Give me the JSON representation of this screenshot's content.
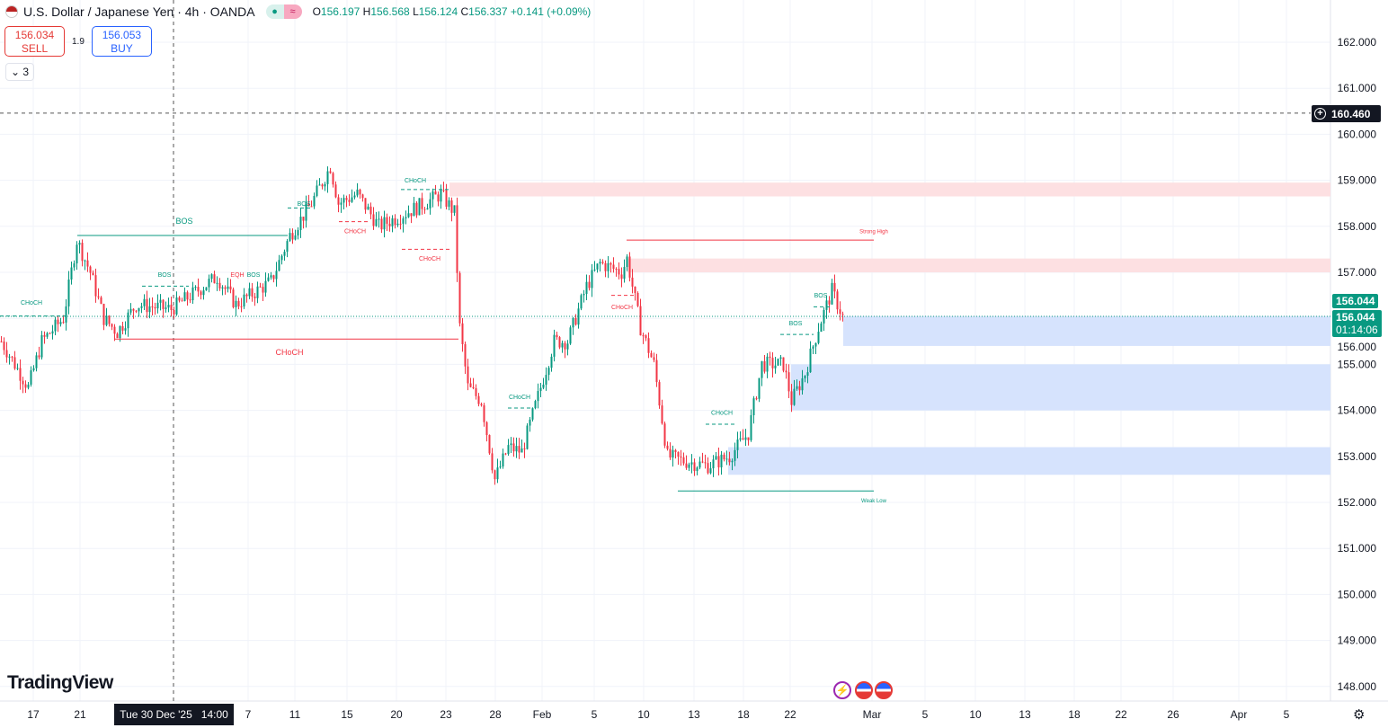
{
  "header": {
    "symbol": "U.S. Dollar / Japanese Yen · 4h · OANDA",
    "open_label": "O",
    "open": "156.197",
    "high_label": "H",
    "high": "156.568",
    "low_label": "L",
    "low": "156.124",
    "close_label": "C",
    "close": "156.337",
    "change": "+0.141 (+0.09%)",
    "market_status_icon": "dot",
    "indicator_icon": "≈"
  },
  "trade": {
    "sell_price": "156.034",
    "sell_label": "SELL",
    "spread": "1.9",
    "buy_price": "156.053",
    "buy_label": "BUY"
  },
  "collapse": {
    "icon": "⌄",
    "count": "3"
  },
  "logo": "TradingView",
  "price_axis": {
    "ticks": [
      "162.000",
      "161.000",
      "160.000",
      "159.000",
      "158.000",
      "157.000",
      "156.000",
      "155.000",
      "154.000",
      "153.000",
      "152.000",
      "151.000",
      "150.000",
      "149.000",
      "148.000"
    ],
    "current_price": "156.044",
    "bid_price": "156.044",
    "countdown": "01:14:06",
    "crosshair_price": "160.460"
  },
  "time_axis": {
    "ticks": [
      "17",
      "21",
      "7",
      "11",
      "15",
      "20",
      "23",
      "28",
      "Feb",
      "5",
      "10",
      "13",
      "18",
      "22",
      "Mar",
      "5",
      "10",
      "13",
      "18",
      "22",
      "26",
      "Apr",
      "5"
    ],
    "cursor_date": "Tue 30 Dec '25",
    "cursor_time": "14:00"
  },
  "colors": {
    "up": "#089981",
    "down": "#f23645",
    "supply": "#fde0e2",
    "demand": "#d6e3fd"
  },
  "chart_data": {
    "type": "candlestick",
    "ylim": [
      147.6,
      162.6
    ],
    "close_path": [
      [
        0,
        155.5
      ],
      [
        10,
        154.5
      ],
      [
        15,
        155.5
      ],
      [
        23,
        156
      ],
      [
        28,
        157.7
      ],
      [
        33,
        157
      ],
      [
        38,
        156
      ],
      [
        43,
        155.7
      ],
      [
        50,
        156.3
      ],
      [
        63,
        156.2
      ],
      [
        80,
        156.9
      ],
      [
        87,
        156.3
      ],
      [
        100,
        156.8
      ],
      [
        107,
        157.8
      ],
      [
        115,
        158.5
      ],
      [
        122,
        159.3
      ],
      [
        125,
        158.5
      ],
      [
        132,
        158.7
      ],
      [
        140,
        158
      ],
      [
        147,
        158.2
      ],
      [
        157,
        158.5
      ],
      [
        163,
        158.7
      ],
      [
        168,
        158.3
      ],
      [
        170,
        155.8
      ],
      [
        173,
        154.5
      ],
      [
        178,
        154.2
      ],
      [
        183,
        152.5
      ],
      [
        188,
        153.2
      ],
      [
        193,
        153.1
      ],
      [
        200,
        154.5
      ],
      [
        205,
        155.5
      ],
      [
        210,
        155.5
      ],
      [
        217,
        156.7
      ],
      [
        222,
        157.2
      ],
      [
        230,
        157
      ],
      [
        232,
        157.3
      ],
      [
        237,
        155.8
      ],
      [
        242,
        155
      ],
      [
        247,
        153
      ],
      [
        253,
        152.9
      ],
      [
        262,
        152.8
      ],
      [
        270,
        153
      ],
      [
        277,
        153.5
      ],
      [
        282,
        155
      ],
      [
        290,
        155
      ],
      [
        293,
        154.2
      ],
      [
        298,
        154.8
      ],
      [
        303,
        155.8
      ],
      [
        308,
        156.6
      ],
      [
        312,
        156.04
      ]
    ],
    "labels": {
      "bos": "BOS",
      "choch": "CHoCH",
      "eqh": "EQH",
      "strong_high": "Strong High",
      "weak_low": "Weak Low"
    }
  }
}
